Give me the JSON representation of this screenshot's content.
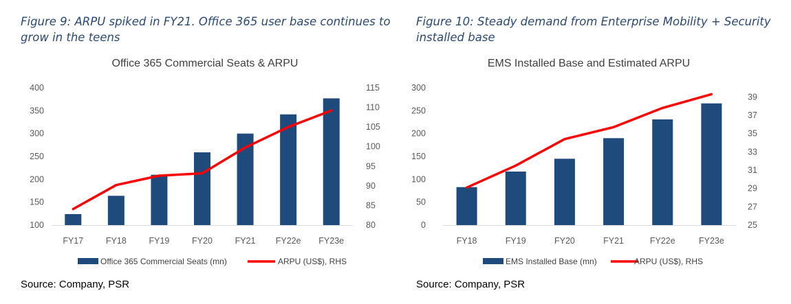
{
  "colors": {
    "bar": "#1f4a7c",
    "line": "#ff0000",
    "caption": "#2b4a73"
  },
  "panels": [
    {
      "caption": "Figure 9: ARPU spiked in FY21. Office 365 user base continues to grow in the teens",
      "source": "Source: Company, PSR"
    },
    {
      "caption": "Figure 10: Steady demand from Enterprise Mobility + Security installed base",
      "source": "Source: Company, PSR"
    }
  ],
  "chart_data": [
    {
      "type": "bar",
      "title": "Office 365 Commercial Seats & ARPU",
      "categories": [
        "FY17",
        "FY18",
        "FY19",
        "FY20",
        "FY21",
        "FY22e",
        "FY23e"
      ],
      "series": [
        {
          "name": "Office 365 Commercial Seats (mn)",
          "type": "bar",
          "axis": "left",
          "values": [
            124,
            164,
            210,
            259,
            300,
            342,
            377
          ]
        },
        {
          "name": "ARPU (US$), RHS",
          "type": "line",
          "axis": "right",
          "values": [
            84.1,
            90.2,
            92.6,
            93.2,
            99.8,
            105.0,
            109.2
          ]
        }
      ],
      "ylim_left": [
        100,
        400
      ],
      "yticks_left": [
        100,
        150,
        200,
        250,
        300,
        350,
        400
      ],
      "ylim_right": [
        80,
        115
      ],
      "yticks_right": [
        80,
        85,
        90,
        95,
        100,
        105,
        110,
        115
      ],
      "legend_position": "bottom",
      "grid": false
    },
    {
      "type": "bar",
      "title": "EMS Installed Base and Estimated ARPU",
      "categories": [
        "FY18",
        "FY19",
        "FY20",
        "FY21",
        "FY22e",
        "FY23e"
      ],
      "series": [
        {
          "name": "EMS Installed Base (mn)",
          "type": "bar",
          "axis": "left",
          "values": [
            83,
            117,
            145,
            190,
            231,
            266
          ]
        },
        {
          "name": "ARPU (US$), RHS",
          "type": "line",
          "axis": "right",
          "values": [
            29.1,
            31.5,
            34.4,
            35.7,
            37.8,
            39.3
          ]
        }
      ],
      "ylim_left": [
        0,
        300
      ],
      "yticks_left": [
        0,
        50,
        100,
        150,
        200,
        250,
        300
      ],
      "ylim_right": [
        25,
        40
      ],
      "yticks_right": [
        25,
        27,
        29,
        31,
        33,
        35,
        37,
        39
      ],
      "legend_position": "bottom",
      "grid": false
    }
  ]
}
